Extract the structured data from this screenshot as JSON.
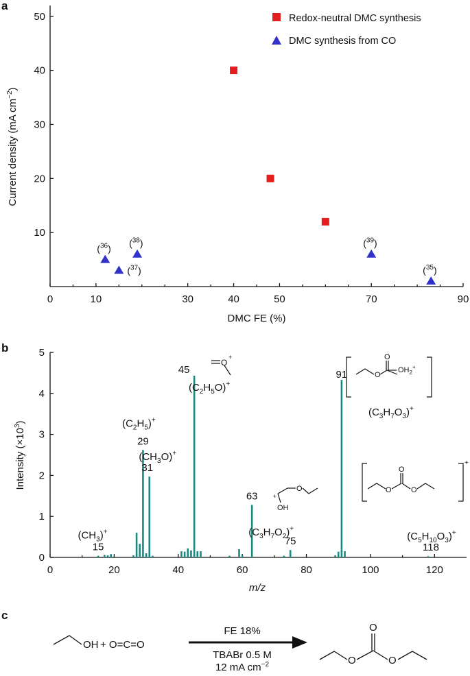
{
  "panels": {
    "a": "a",
    "b": "b",
    "c": "c"
  },
  "chart_data": [
    {
      "type": "scatter",
      "panel": "a",
      "xlabel": "DMC FE (%)",
      "ylabel": "Current density (mA cm",
      "ylabel_sup": "−2",
      "ylabel_close": ")",
      "xlim": [
        0,
        90
      ],
      "ylim": [
        0,
        52
      ],
      "xticks": [
        0,
        10,
        30,
        40,
        50,
        70,
        90
      ],
      "yticks": [
        10,
        20,
        30,
        40,
        50
      ],
      "legend_position": "top-right",
      "colors": {
        "red": "#e41e1e",
        "blue": "#3232c8"
      },
      "series": [
        {
          "name": "Redox-neutral DMC synthesis",
          "marker": "square",
          "color": "#e41e1e",
          "points": [
            {
              "x": 40,
              "y": 40
            },
            {
              "x": 48,
              "y": 20
            },
            {
              "x": 60,
              "y": 12
            }
          ]
        },
        {
          "name": "DMC synthesis from CO",
          "marker": "triangle",
          "color": "#3232c8",
          "points": [
            {
              "x": 12,
              "y": 5,
              "ref": "36"
            },
            {
              "x": 15,
              "y": 3,
              "ref": "37"
            },
            {
              "x": 19,
              "y": 6,
              "ref": "38"
            },
            {
              "x": 70,
              "y": 6,
              "ref": "39"
            },
            {
              "x": 83,
              "y": 1,
              "ref": "35"
            }
          ]
        }
      ]
    },
    {
      "type": "bar",
      "panel": "b",
      "xlabel": "m/z",
      "ylabel": "Intensity (×10",
      "ylabel_sup": "3",
      "ylabel_close": ")",
      "xlim": [
        0,
        130
      ],
      "ylim": [
        0,
        5
      ],
      "xticks": [
        0,
        20,
        40,
        60,
        80,
        100,
        120
      ],
      "yticks": [
        0,
        1,
        2,
        3,
        4,
        5
      ],
      "color": "#1a8a80",
      "peaks": [
        {
          "x": 15,
          "y": 0.04
        },
        {
          "x": 17,
          "y": 0.06
        },
        {
          "x": 18,
          "y": 0.05
        },
        {
          "x": 19,
          "y": 0.08
        },
        {
          "x": 26,
          "y": 0.05
        },
        {
          "x": 27,
          "y": 0.6
        },
        {
          "x": 28,
          "y": 0.33
        },
        {
          "x": 29,
          "y": 2.62
        },
        {
          "x": 30,
          "y": 0.1
        },
        {
          "x": 31,
          "y": 1.97
        },
        {
          "x": 32,
          "y": 0.04
        },
        {
          "x": 41,
          "y": 0.15
        },
        {
          "x": 42,
          "y": 0.14
        },
        {
          "x": 43,
          "y": 0.22
        },
        {
          "x": 44,
          "y": 0.17
        },
        {
          "x": 45,
          "y": 4.43
        },
        {
          "x": 46,
          "y": 0.15
        },
        {
          "x": 47,
          "y": 0.15
        },
        {
          "x": 56,
          "y": 0.04
        },
        {
          "x": 59,
          "y": 0.2
        },
        {
          "x": 60,
          "y": 0.05
        },
        {
          "x": 63,
          "y": 1.28
        },
        {
          "x": 73,
          "y": 0.04
        },
        {
          "x": 75,
          "y": 0.18
        },
        {
          "x": 89,
          "y": 0.05
        },
        {
          "x": 90,
          "y": 0.14
        },
        {
          "x": 91,
          "y": 4.33
        },
        {
          "x": 92,
          "y": 0.15
        },
        {
          "x": 118,
          "y": 0.03
        }
      ],
      "peak_labels": [
        {
          "x": 15,
          "y": 0.04,
          "mz": "15",
          "formula": "(CH",
          "sub1": "3",
          "rest1": ")",
          "sup": "+"
        },
        {
          "x": 29,
          "y": 2.62,
          "mz": "29",
          "formula": "(C",
          "sub1": "2",
          "rest1": "H",
          "sub2": "5",
          "rest2": ")",
          "sup": "+"
        },
        {
          "x": 31,
          "y": 1.97,
          "mz": "31",
          "formula": "(CH",
          "sub1": "3",
          "rest1": "O)",
          "sup": "+"
        },
        {
          "x": 45,
          "y": 4.43,
          "mz": "45",
          "formula": "(C",
          "sub1": "2",
          "rest1": "H",
          "sub2": "5",
          "rest2": "O)",
          "sup": "+"
        },
        {
          "x": 63,
          "y": 1.28,
          "mz": "63"
        },
        {
          "x": 75,
          "y": 0.18,
          "mz": "75",
          "formula": "(C",
          "sub1": "3",
          "rest1": "H",
          "sub2": "7",
          "rest2": "O",
          "sub3": "2",
          "rest3": ")",
          "sup": "+"
        },
        {
          "x": 91,
          "y": 4.33,
          "mz": "91",
          "formula": "(C",
          "sub1": "3",
          "rest1": "H",
          "sub2": "7",
          "rest2": "O",
          "sub3": "3",
          "rest3": ")",
          "sup": "+"
        },
        {
          "x": 118,
          "y": 0.03,
          "mz": "118",
          "formula": "(C",
          "sub1": "5",
          "rest1": "H",
          "sub2": "10",
          "rest2": "O",
          "sub3": "3",
          "rest3": ")",
          "sup": "+"
        }
      ],
      "structure_labels": {
        "oxonium": "O",
        "oxonium_charge": "+",
        "oh2": "OH",
        "oh2_sub": "2",
        "oh2_charge": "+",
        "hydroxy_o": "O",
        "hydroxy_oh": "OH",
        "hydroxy_charge": "+",
        "dec_charge": "+"
      }
    }
  ],
  "reaction": {
    "oh": "OH",
    "co2": "+ O=C=O",
    "condition_top": "FE 18%",
    "condition_mid": "TBABr 0.5 M",
    "condition_bot_main": "12 mA cm",
    "condition_bot_sup": "−2",
    "product_o": "O"
  }
}
